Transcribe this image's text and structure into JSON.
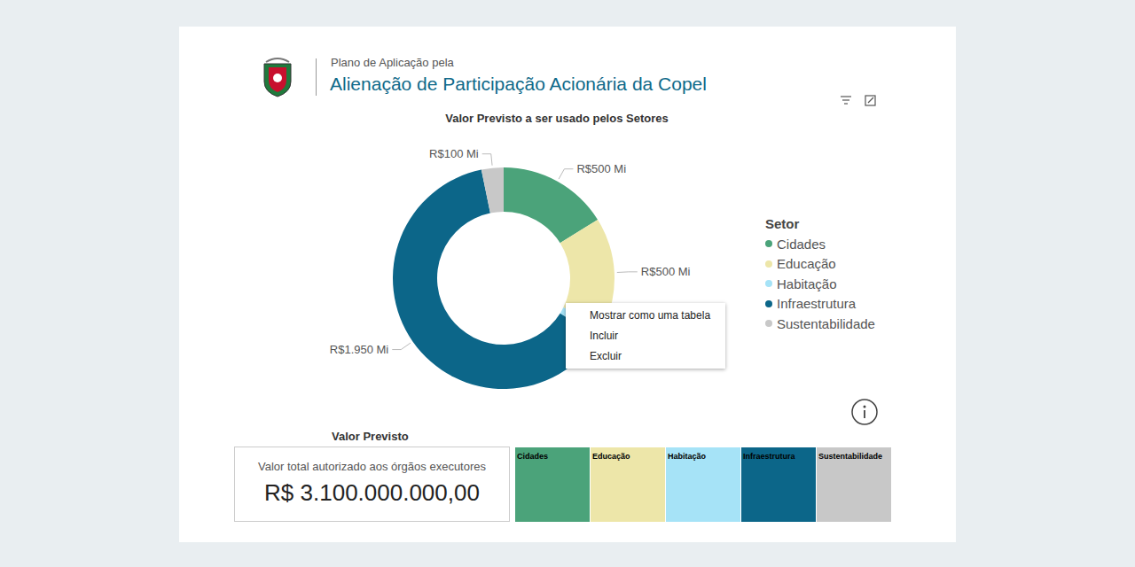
{
  "header": {
    "subtitle": "Plano de Aplicação pela",
    "title": "Alienação de Participação Acionária da Copel"
  },
  "chart_data": {
    "type": "pie",
    "title": "Valor Previsto a ser usado pelos Setores",
    "categories": [
      "Cidades",
      "Educação",
      "Habitação",
      "Infraestrutura",
      "Sustentabilidade"
    ],
    "values": [
      500,
      500,
      50,
      1950,
      100
    ],
    "value_labels": [
      "R$500 Mi",
      "R$500 Mi",
      null,
      "R$1.950 Mi",
      "R$100 Mi"
    ],
    "colors": [
      "#4ba37a",
      "#ede6a9",
      "#a6e3f7",
      "#0c6689",
      "#c8c8c8"
    ],
    "data_labels": true,
    "legend": "right",
    "legend_title": "Setor"
  },
  "context_menu": [
    "Mostrar como uma tabela",
    "Incluir",
    "Excluir"
  ],
  "card": {
    "heading": "Valor Previsto",
    "label": "Valor total autorizado aos órgãos executores",
    "value": "R$ 3.100.000.000,00"
  }
}
